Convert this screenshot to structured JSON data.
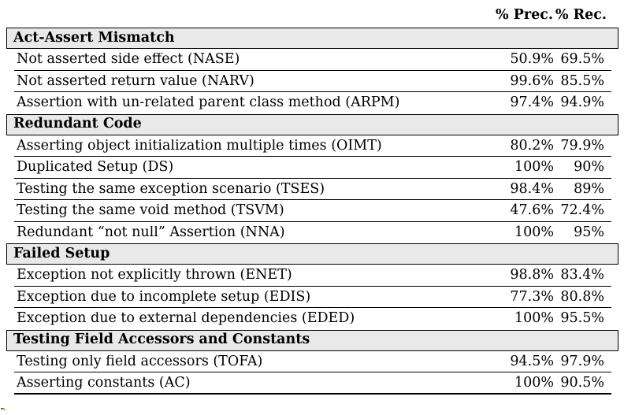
{
  "header": {
    "col_prec": "% Prec.",
    "col_rec": "% Rec."
  },
  "sections": [
    {
      "title": "Act-Assert Mismatch",
      "rows": [
        {
          "label": "Not asserted side effect (NASE)",
          "prec": "50.9%",
          "rec": "69.5%"
        },
        {
          "label": "Not asserted return value (NARV)",
          "prec": "99.6%",
          "rec": "85.5%"
        },
        {
          "label": "Assertion with un-related parent class method (ARPM)",
          "prec": "97.4%",
          "rec": "94.9%"
        }
      ]
    },
    {
      "title": "Redundant Code",
      "rows": [
        {
          "label": "Asserting object initialization multiple times (OIMT)",
          "prec": "80.2%",
          "rec": "79.9%"
        },
        {
          "label": "Duplicated Setup (DS)",
          "prec": "100%",
          "rec": "90%"
        },
        {
          "label": "Testing the same exception scenario (TSES)",
          "prec": "98.4%",
          "rec": "89%"
        },
        {
          "label": "Testing the same void method (TSVM)",
          "prec": "47.6%",
          "rec": "72.4%"
        },
        {
          "label": "Redundant “not null” Assertion (NNA)",
          "prec": "100%",
          "rec": "95%"
        }
      ]
    },
    {
      "title": "Failed Setup",
      "rows": [
        {
          "label": "Exception not explicitly thrown (ENET)",
          "prec": "98.8%",
          "rec": "83.4%"
        },
        {
          "label": "Exception due to incomplete setup (EDIS)",
          "prec": "77.3%",
          "rec": "80.8%"
        },
        {
          "label": "Exception due to external dependencies (EDED)",
          "prec": "100%",
          "rec": "95.5%"
        }
      ]
    },
    {
      "title": "Testing Field Accessors and Constants",
      "rows": [
        {
          "label": "Testing only field accessors (TOFA)",
          "prec": "94.5%",
          "rec": "97.9%"
        },
        {
          "label": "Asserting constants (AC)",
          "prec": "100%",
          "rec": "90.5%"
        }
      ]
    }
  ],
  "colors": {
    "page_bg": "#ffffff",
    "text": "#000000",
    "border": "#000000",
    "section_bg": "#e9e9e9"
  }
}
